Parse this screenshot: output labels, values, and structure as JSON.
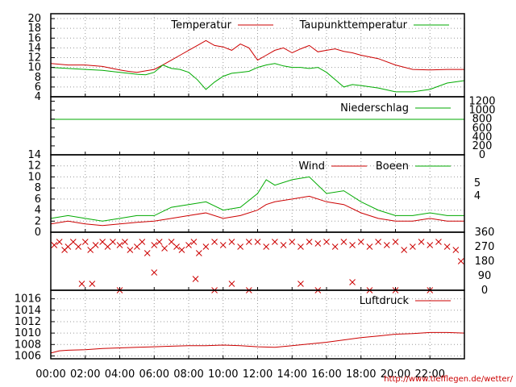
{
  "credit": "http://www.tiefflegen.de/wetter/",
  "colors": {
    "red": "#cc0000",
    "green": "#00aa00",
    "grid": "#9a9a9a"
  },
  "chart_data": [
    {
      "type": "line",
      "panel": "temperature",
      "x_unit": "hour",
      "xlim": [
        0,
        24
      ],
      "ylim": [
        4,
        21
      ],
      "y_ticks": [
        "4",
        "6",
        "8",
        "10",
        "12",
        "14",
        "16",
        "18",
        "20"
      ],
      "legend_placement": "top-right",
      "grid": true,
      "series": [
        {
          "name": "Temperatur",
          "color": "#cc0000",
          "x": [
            0,
            1,
            2,
            3,
            4,
            4.5,
            5,
            5.5,
            6,
            6.5,
            7,
            7.5,
            8,
            8.5,
            9,
            9.5,
            10,
            10.5,
            11,
            11.5,
            12,
            12.5,
            13,
            13.5,
            14,
            14.5,
            15,
            15.5,
            16,
            16.5,
            17,
            17.5,
            18,
            19,
            20,
            21,
            22,
            23,
            24
          ],
          "y": [
            10.8,
            10.5,
            10.5,
            10.2,
            9.5,
            9.2,
            9.0,
            9.3,
            9.6,
            10.5,
            11.5,
            12.5,
            13.5,
            14.5,
            15.5,
            14.5,
            14.2,
            13.5,
            14.8,
            14.0,
            11.5,
            12.5,
            13.5,
            14.0,
            13.0,
            13.8,
            14.5,
            13.2,
            13.5,
            13.8,
            13.3,
            13.0,
            12.5,
            11.8,
            10.5,
            9.6,
            9.5,
            9.6,
            9.6
          ]
        },
        {
          "name": "Taupunkttemperatur",
          "color": "#00aa00",
          "x": [
            0,
            1,
            2,
            3,
            4,
            4.5,
            5,
            5.5,
            6,
            6.5,
            7,
            7.5,
            8,
            8.5,
            9,
            9.5,
            10,
            10.5,
            11,
            11.5,
            12,
            12.5,
            13,
            13.5,
            14,
            14.5,
            15,
            15.5,
            16,
            16.5,
            17,
            17.5,
            18,
            19,
            20,
            21,
            22,
            23,
            24
          ],
          "y": [
            10.0,
            9.8,
            9.6,
            9.4,
            9.0,
            8.8,
            8.6,
            8.5,
            9.0,
            10.5,
            9.8,
            9.6,
            9.0,
            7.5,
            5.5,
            7.0,
            8.2,
            8.8,
            9.0,
            9.2,
            10.0,
            10.5,
            10.8,
            10.3,
            10.0,
            10.0,
            9.8,
            10.0,
            9.0,
            7.5,
            6.0,
            6.5,
            6.3,
            5.8,
            5.0,
            5.0,
            5.5,
            6.8,
            7.3
          ]
        }
      ]
    },
    {
      "type": "line",
      "panel": "precipitation",
      "xlim": [
        0,
        24
      ],
      "ylim": [
        0,
        1300
      ],
      "y_ticks": [
        "0",
        "200",
        "400",
        "600",
        "800",
        "1000",
        "1200"
      ],
      "legend_placement": "top-right",
      "grid": false,
      "series": [
        {
          "name": "Niederschlag",
          "color": "#00aa00",
          "x": [
            0,
            24
          ],
          "y": [
            0,
            0
          ]
        }
      ]
    },
    {
      "type": "line",
      "panel": "wind",
      "xlim": [
        0,
        24
      ],
      "ylim": [
        0,
        14
      ],
      "y_ticks": [
        "0",
        "2",
        "4",
        "6",
        "8",
        "10",
        "12",
        "14"
      ],
      "y2_ticks": [
        "4",
        "5"
      ],
      "legend_placement": "top-right",
      "grid": true,
      "series": [
        {
          "name": "Wind",
          "color": "#cc0000",
          "x": [
            0,
            1,
            2,
            3,
            4,
            5,
            6,
            7,
            8,
            9,
            10,
            11,
            12,
            12.5,
            13,
            14,
            15,
            16,
            17,
            18,
            19,
            20,
            21,
            22,
            23,
            24
          ],
          "y": [
            1.5,
            2.0,
            1.5,
            1.2,
            1.5,
            1.8,
            2.0,
            2.5,
            3.0,
            3.5,
            2.5,
            3.0,
            4.0,
            5.0,
            5.5,
            6.0,
            6.5,
            5.5,
            5.0,
            3.5,
            2.5,
            2.0,
            2.0,
            2.5,
            2.0,
            2.0
          ]
        },
        {
          "name": "Boeen",
          "color": "#00aa00",
          "x": [
            0,
            1,
            2,
            3,
            4,
            5,
            6,
            7,
            8,
            9,
            10,
            11,
            12,
            12.5,
            13,
            14,
            15,
            16,
            17,
            18,
            19,
            20,
            21,
            22,
            23,
            24
          ],
          "y": [
            2.5,
            3.0,
            2.5,
            2.0,
            2.5,
            3.0,
            3.0,
            4.5,
            5.0,
            5.5,
            4.0,
            4.5,
            7.0,
            9.5,
            8.5,
            9.5,
            10.0,
            7.0,
            7.5,
            5.5,
            4.0,
            3.0,
            3.0,
            3.5,
            3.0,
            3.0
          ]
        }
      ]
    },
    {
      "type": "scatter",
      "panel": "wind-direction",
      "xlim": [
        0,
        24
      ],
      "ylim": [
        0,
        360
      ],
      "y_ticks": [
        "0",
        "90",
        "180",
        "270",
        "360"
      ],
      "marker": "x",
      "grid": false,
      "series": [
        {
          "name": "",
          "color": "#cc0000",
          "points": [
            [
              0.2,
              280
            ],
            [
              0.5,
              300
            ],
            [
              0.8,
              250
            ],
            [
              1,
              270
            ],
            [
              1.3,
              300
            ],
            [
              1.6,
              270
            ],
            [
              2,
              300
            ],
            [
              2.3,
              250
            ],
            [
              2.6,
              280
            ],
            [
              3,
              300
            ],
            [
              3.3,
              270
            ],
            [
              3.6,
              300
            ],
            [
              4,
              280
            ],
            [
              4.3,
              300
            ],
            [
              4.6,
              250
            ],
            [
              5,
              270
            ],
            [
              5.3,
              300
            ],
            [
              5.6,
              230
            ],
            [
              6,
              280
            ],
            [
              6.3,
              300
            ],
            [
              6.6,
              260
            ],
            [
              7,
              300
            ],
            [
              7.3,
              270
            ],
            [
              7.6,
              250
            ],
            [
              8,
              280
            ],
            [
              8.3,
              300
            ],
            [
              8.6,
              230
            ],
            [
              9,
              270
            ],
            [
              9.5,
              300
            ],
            [
              10,
              280
            ],
            [
              10.5,
              300
            ],
            [
              11,
              270
            ],
            [
              11.5,
              300
            ],
            [
              12,
              300
            ],
            [
              12.5,
              270
            ],
            [
              13,
              300
            ],
            [
              13.5,
              280
            ],
            [
              14,
              300
            ],
            [
              14.5,
              270
            ],
            [
              15,
              300
            ],
            [
              15.5,
              290
            ],
            [
              16,
              300
            ],
            [
              16.5,
              270
            ],
            [
              17,
              300
            ],
            [
              17.5,
              280
            ],
            [
              18,
              300
            ],
            [
              18.5,
              270
            ],
            [
              19,
              300
            ],
            [
              19.5,
              280
            ],
            [
              20,
              300
            ],
            [
              20.5,
              250
            ],
            [
              21,
              270
            ],
            [
              21.5,
              300
            ],
            [
              22,
              280
            ],
            [
              22.5,
              300
            ],
            [
              23,
              270
            ],
            [
              23.5,
              250
            ],
            [
              23.8,
              180
            ],
            [
              1.8,
              40
            ],
            [
              2.4,
              40
            ],
            [
              6,
              110
            ],
            [
              8.4,
              70
            ],
            [
              10.5,
              40
            ],
            [
              14.5,
              40
            ],
            [
              17.5,
              50
            ],
            [
              20,
              0
            ],
            [
              4,
              0
            ],
            [
              9.5,
              0
            ],
            [
              11.5,
              0
            ],
            [
              15.5,
              0
            ],
            [
              18.5,
              0
            ],
            [
              22,
              0
            ]
          ]
        }
      ]
    },
    {
      "type": "line",
      "panel": "pressure",
      "xlim": [
        0,
        24
      ],
      "ylim": [
        1005.5,
        1017.5
      ],
      "y_ticks": [
        "1006",
        "1008",
        "1010",
        "1012",
        "1014",
        "1016"
      ],
      "x_ticks": [
        "00:00",
        "02:00",
        "04:00",
        "06:00",
        "08:00",
        "10:00",
        "12:00",
        "14:00",
        "16:00",
        "18:00",
        "20:00",
        "22:00"
      ],
      "legend_placement": "top-right",
      "grid": true,
      "series": [
        {
          "name": "Luftdruck",
          "color": "#cc0000",
          "x": [
            0,
            0.5,
            1,
            2,
            3,
            4,
            5,
            6,
            7,
            8,
            9,
            10,
            11,
            12,
            13,
            14,
            15,
            16,
            17,
            18,
            19,
            20,
            21,
            22,
            23,
            24
          ],
          "y": [
            1006.5,
            1006.9,
            1007.0,
            1007.1,
            1007.3,
            1007.4,
            1007.5,
            1007.6,
            1007.7,
            1007.8,
            1007.8,
            1007.9,
            1007.8,
            1007.6,
            1007.5,
            1007.8,
            1008.1,
            1008.4,
            1008.8,
            1009.2,
            1009.5,
            1009.8,
            1009.9,
            1010.1,
            1010.1,
            1010.0
          ]
        }
      ]
    }
  ]
}
